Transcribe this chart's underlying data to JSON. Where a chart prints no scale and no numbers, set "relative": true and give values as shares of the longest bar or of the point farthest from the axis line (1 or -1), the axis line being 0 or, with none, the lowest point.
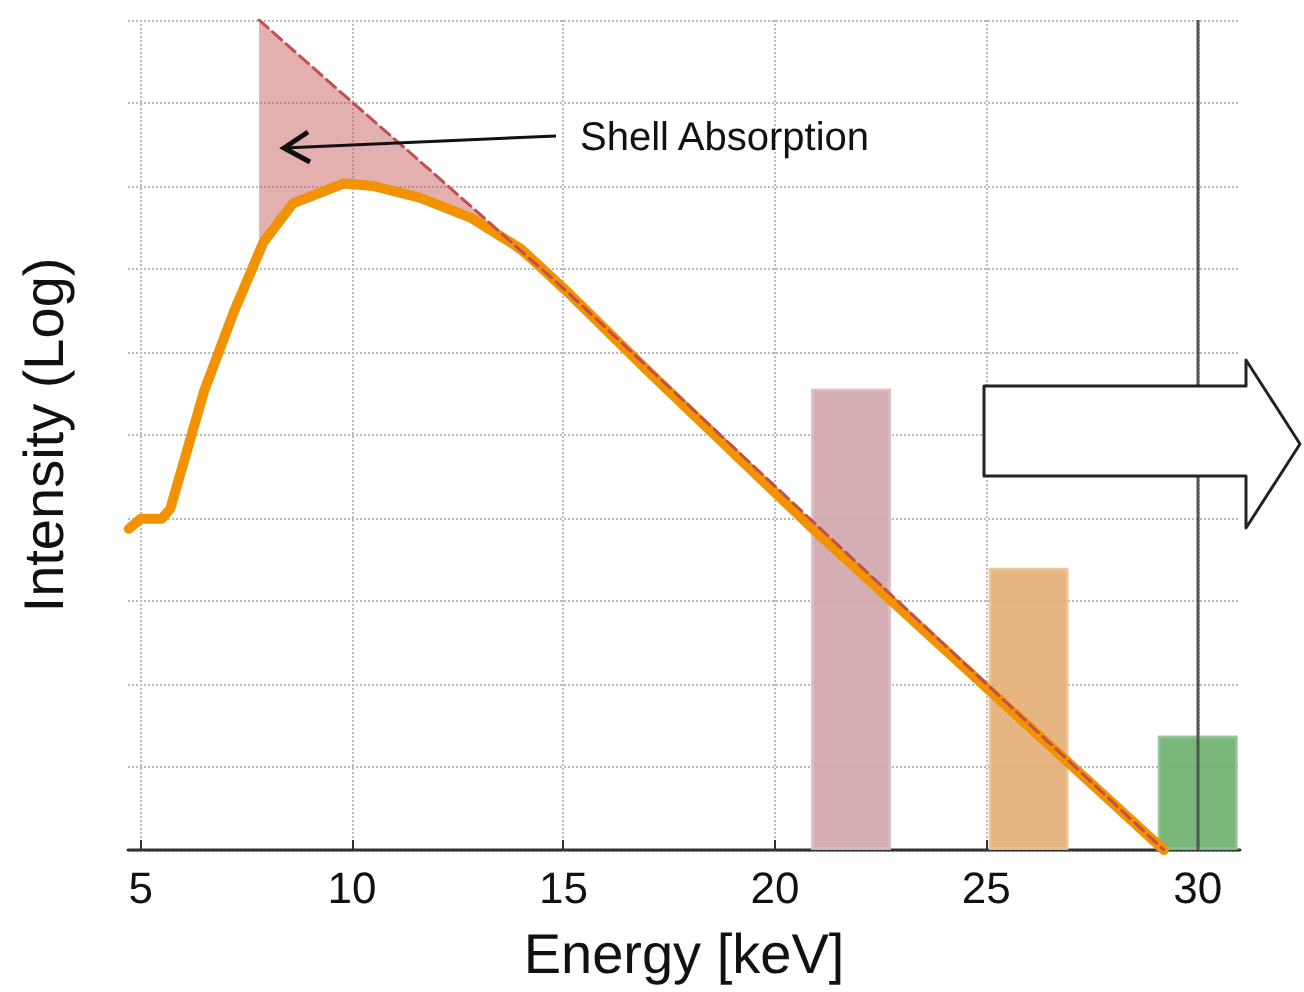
{
  "chart_data": {
    "type": "line",
    "relative": true,
    "xlabel": "Energy [keV]",
    "ylabel": "Intensity (Log)",
    "xlim": [
      4.7,
      31
    ],
    "xticks": [
      5,
      10,
      15,
      20,
      25,
      30
    ],
    "grid": true,
    "marker": "none",
    "series": [
      {
        "color": "#f39200",
        "x": [
          4.72,
          5.0,
          5.5,
          5.7,
          6.5,
          7.2,
          7.9,
          8.6,
          9.8,
          10.5,
          11.6,
          12.8,
          14.0,
          15.1,
          17.0,
          20.9,
          29.2
        ],
        "values": [
          0.387,
          0.399,
          0.399,
          0.411,
          0.553,
          0.648,
          0.732,
          0.779,
          0.803,
          0.8,
          0.786,
          0.762,
          0.724,
          0.672,
          0.577,
          0.387,
          0
        ]
      },
      {
        "color": "#c0504d",
        "line_style": "dashed",
        "x": [
          7.8,
          8.6,
          9.8,
          11.6,
          12.8,
          15.1,
          29.2
        ],
        "values": [
          1.0,
          0.964,
          0.91,
          0.83,
          0.776,
          0.672,
          0
        ],
        "lower": [
          0.732,
          0.779,
          0.803,
          0.786,
          0.762,
          0.672,
          0
        ],
        "upper": [
          1.0,
          0.964,
          0.91,
          0.83,
          0.776,
          0.672,
          0
        ]
      },
      {
        "type": "bar",
        "x": [
          21.8,
          26.0,
          30.0
        ],
        "values": [
          0.556,
          0.34,
          0.138
        ],
        "colors": [
          "#cfa5ab",
          "#e3ad73",
          "#6aae6a"
        ]
      }
    ],
    "ref_lines": [
      {
        "axis": "x",
        "value": 30,
        "color": "#555555"
      }
    ],
    "annotations": [
      "Shell Absorption"
    ]
  }
}
